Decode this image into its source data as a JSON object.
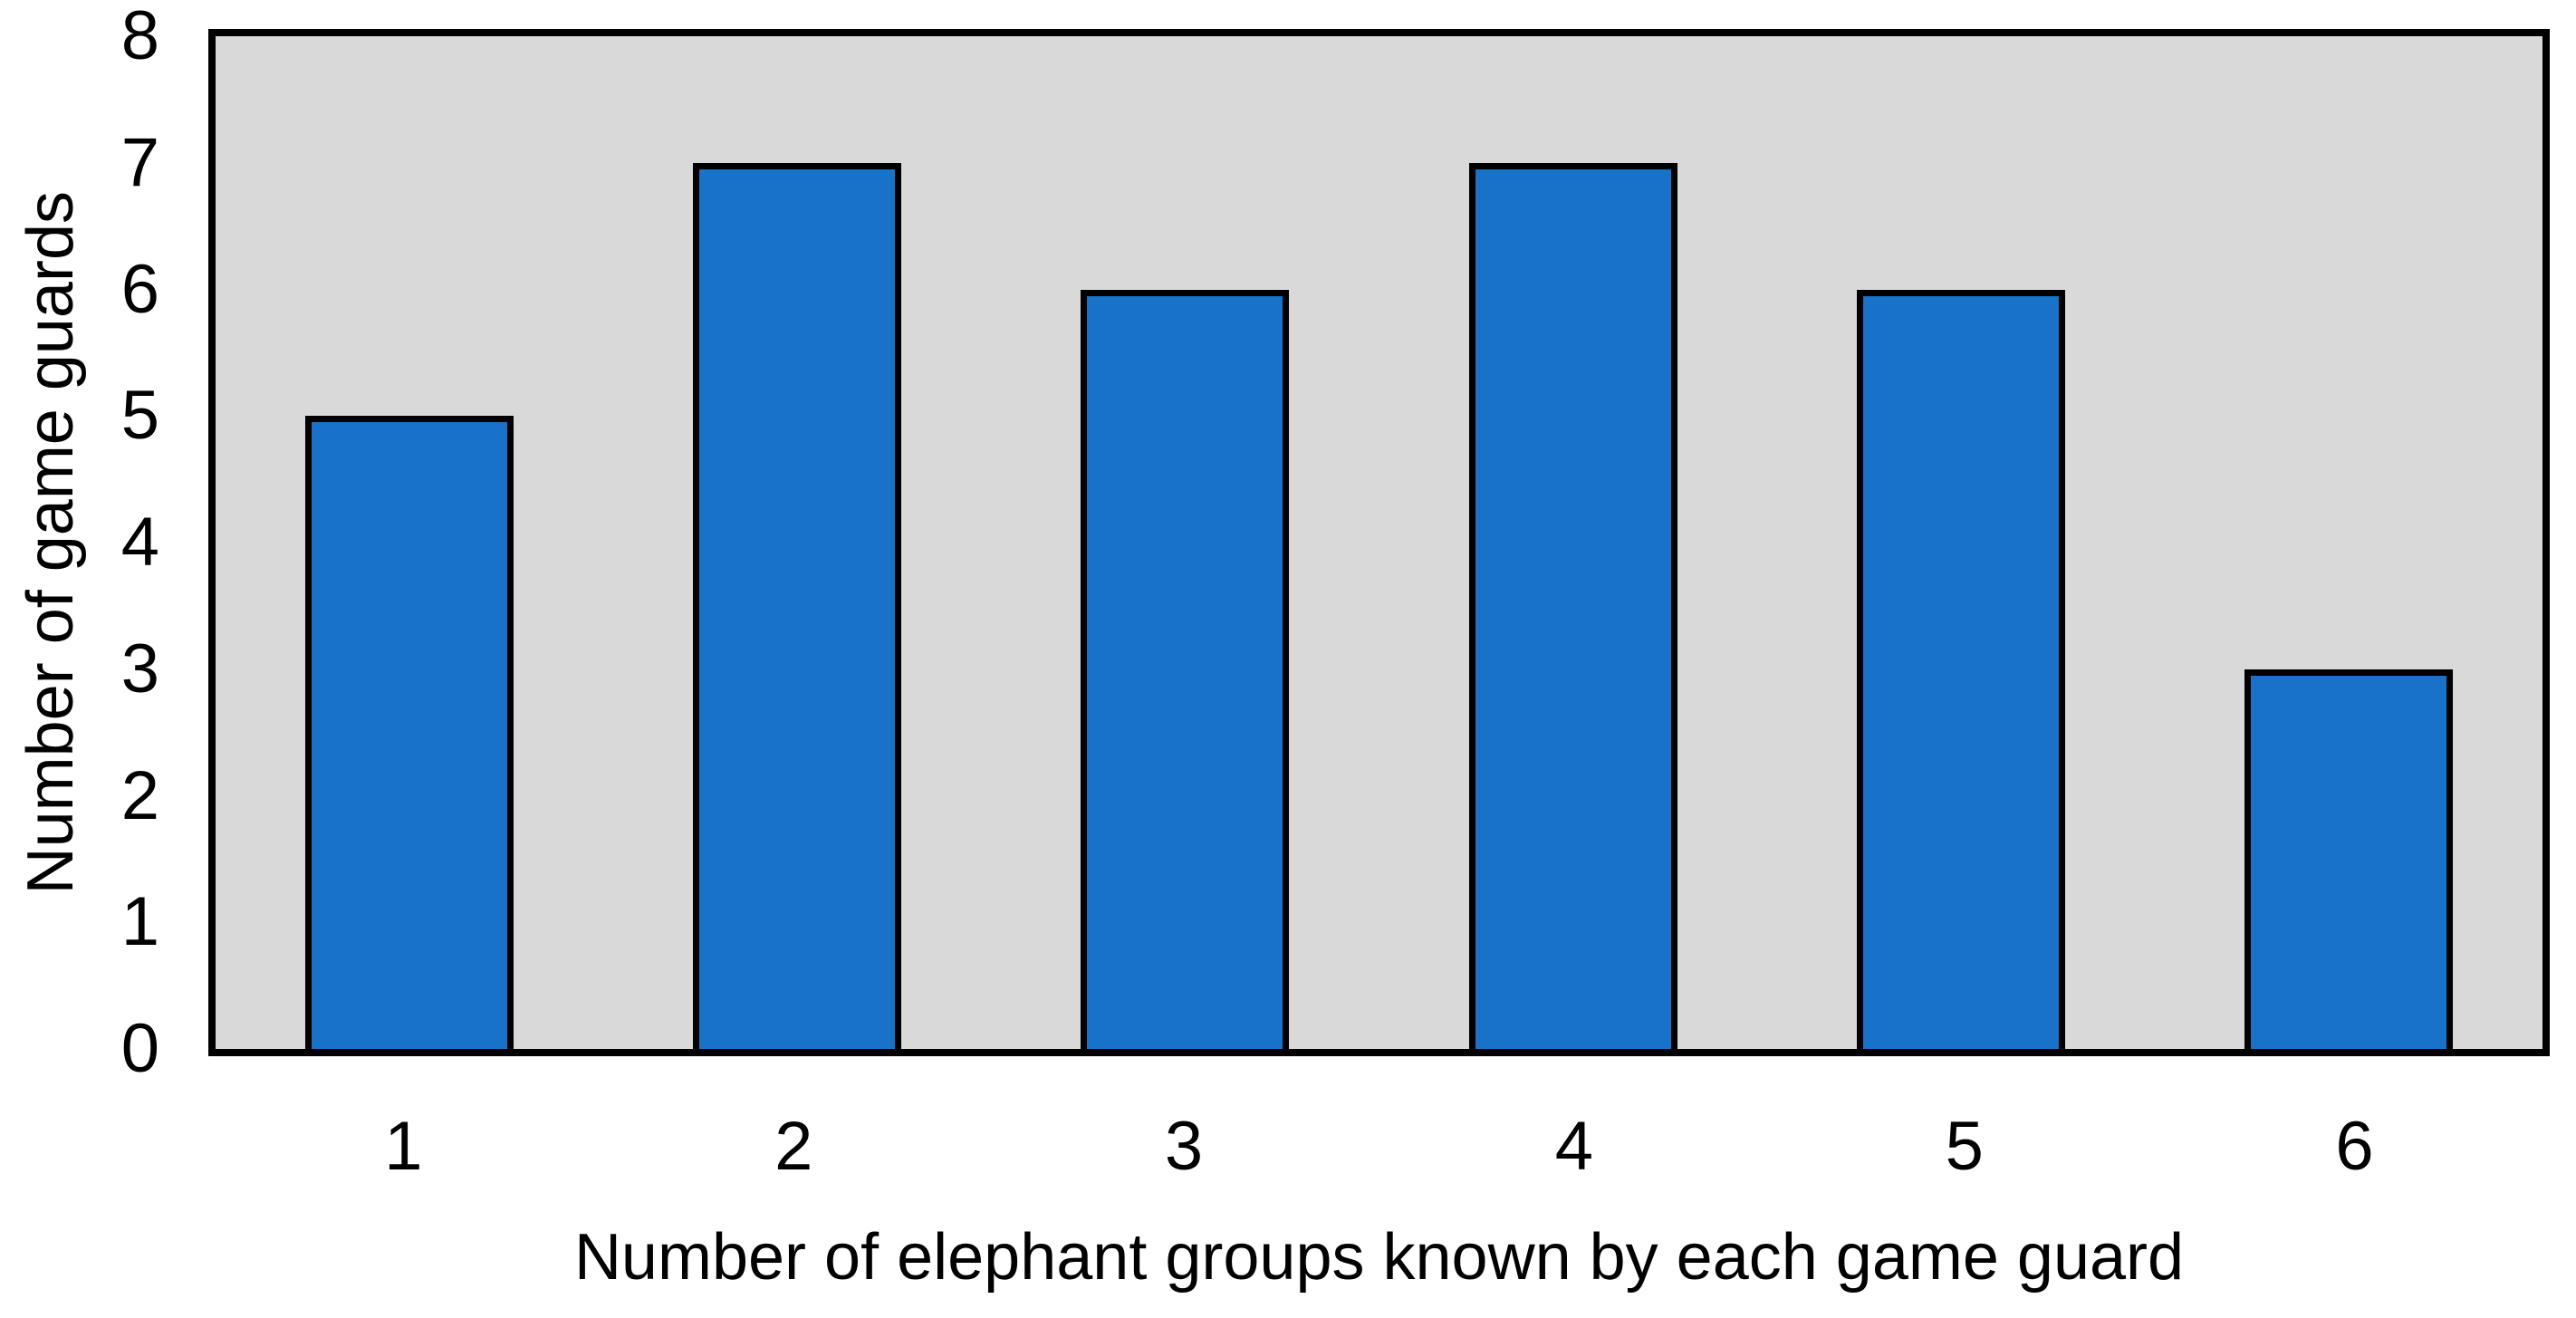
{
  "chart_data": {
    "type": "bar",
    "title": "",
    "categories": [
      "1",
      "2",
      "3",
      "4",
      "5",
      "6"
    ],
    "values": [
      5,
      7,
      6,
      7,
      6,
      3
    ],
    "xlabel": "Number of elephant groups known by each game guard",
    "ylabel": "Number of game guards",
    "ylim": [
      0,
      8
    ],
    "yticks": [
      0,
      1,
      2,
      3,
      4,
      5,
      6,
      7,
      8
    ],
    "grid": false,
    "legend": false,
    "colors": {
      "bar_fill": "#1772C8",
      "bar_border": "#000000",
      "plot_background": "#D9D9D9",
      "plot_border": "#000000",
      "page_background": "#FFFFFF",
      "text": "#000000"
    }
  }
}
